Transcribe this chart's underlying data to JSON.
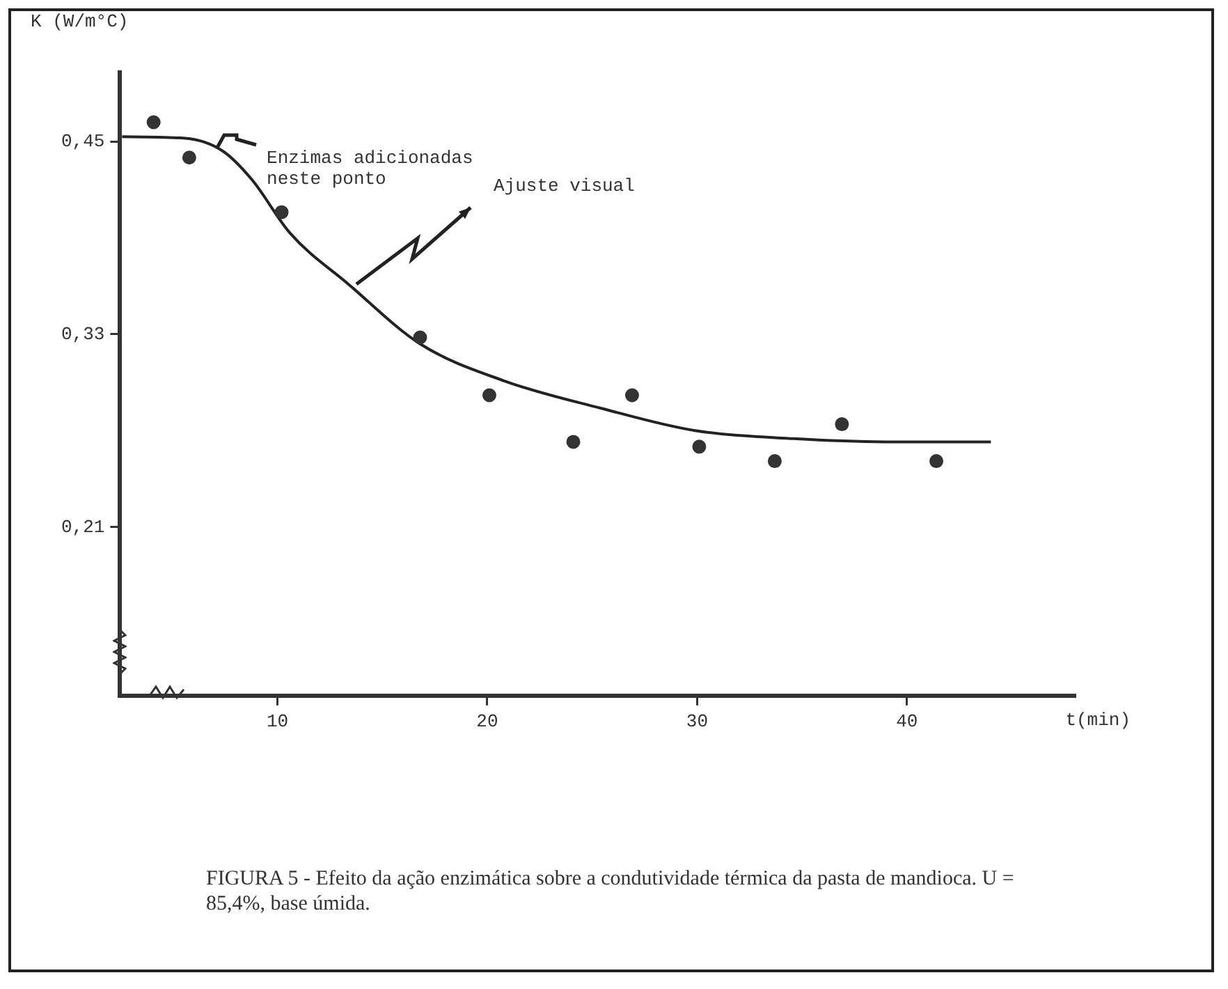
{
  "chart_data": {
    "type": "scatter",
    "ylabel": "K (W/m°C)",
    "xlabel": "t(min)",
    "xlim": [
      2.5,
      48
    ],
    "xticks": [
      10,
      20,
      30,
      40
    ],
    "ylim": [
      0.105,
      0.493
    ],
    "yticks": [
      {
        "value": 0.21,
        "label": "0,21"
      },
      {
        "value": 0.33,
        "label": "0,33"
      },
      {
        "value": 0.45,
        "label": "0,45"
      }
    ],
    "grid": false,
    "legend": false,
    "marker": "circle",
    "series": [
      {
        "color": "#333333",
        "x": [
          4.1,
          5.8,
          10.2,
          16.8,
          20.1,
          24.1,
          26.9,
          30.1,
          33.7,
          36.9,
          41.4
        ],
        "values": [
          0.462,
          0.44,
          0.406,
          0.328,
          0.292,
          0.263,
          0.292,
          0.26,
          0.251,
          0.274,
          0.251
        ]
      },
      {
        "type": "line",
        "color": "#222222",
        "marker": "none",
        "line_style": "solid",
        "x": [
          2.6,
          5.6,
          7.4,
          8.8,
          10.6,
          13.4,
          16.8,
          20.8,
          25.4,
          29.9,
          34.6,
          39.2,
          44.0
        ],
        "values": [
          0.453,
          0.452,
          0.444,
          0.426,
          0.393,
          0.361,
          0.324,
          0.301,
          0.284,
          0.27,
          0.265,
          0.263,
          0.263
        ]
      }
    ],
    "annotations": [
      {
        "text": "Enzimas adicionadas neste ponto",
        "x": 7.1,
        "y": 0.446
      },
      "Ajuste visual",
      "FIGURA 5 - Efeito da ação enzimática sobre a condutividade térmica da pasta de mandioca. U = 85,4%, base úmida."
    ]
  }
}
